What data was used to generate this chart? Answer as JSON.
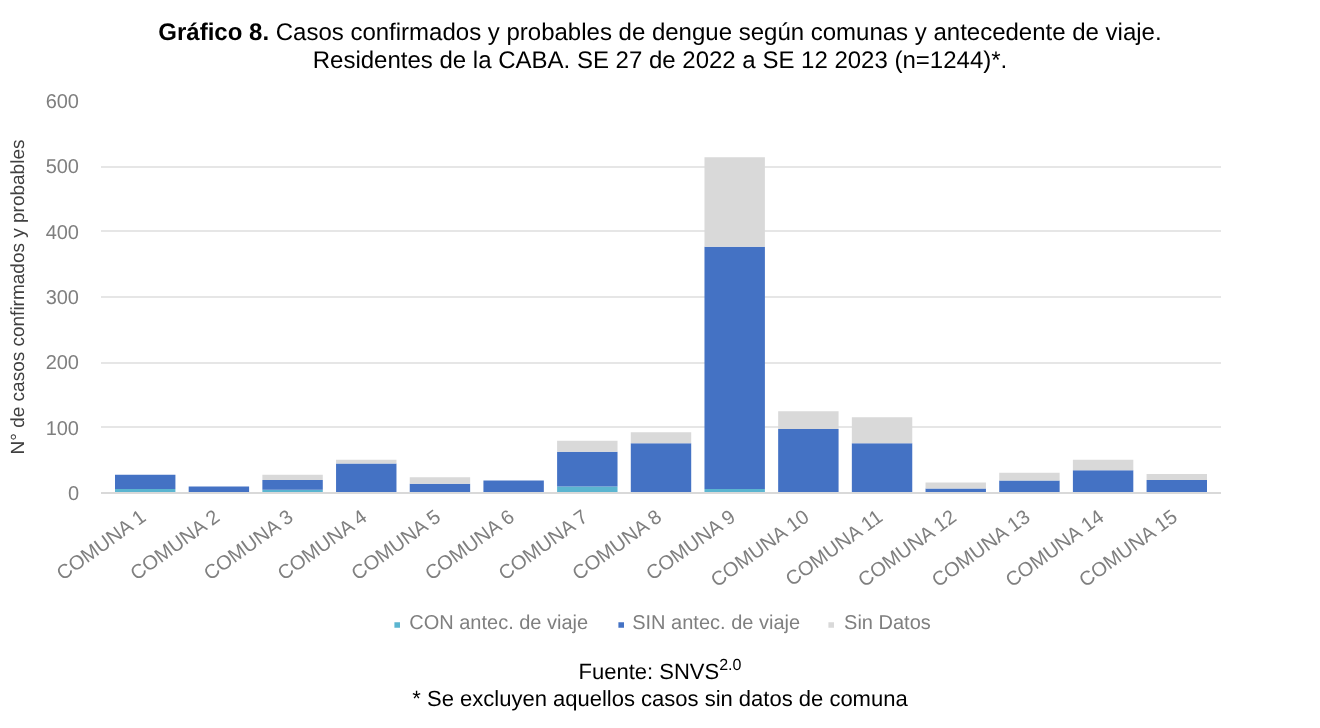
{
  "chart_data": {
    "type": "bar",
    "stacked": true,
    "title": "Gráfico 8. Casos confirmados y probables de dengue según comunas y antecedente de viaje. Residentes de la CABA. SE 27 de 2022 a SE 12 2023 (n=1244)*.",
    "ylabel": "N° de casos confirmados y probables",
    "categories": [
      "COMUNA 1",
      "COMUNA 2",
      "COMUNA 3",
      "COMUNA 4",
      "COMUNA 5",
      "COMUNA 6",
      "COMUNA 7",
      "COMUNA 8",
      "COMUNA 9",
      "COMUNA 10",
      "COMUNA 11",
      "COMUNA 12",
      "COMUNA 13",
      "COMUNA 14",
      "COMUNA 15"
    ],
    "series": [
      {
        "name": "CON antec. de viaje",
        "color": "#5bb5d0",
        "values": [
          6,
          1,
          5,
          1,
          null,
          1,
          10,
          null,
          6,
          1,
          1,
          1,
          1,
          1,
          1
        ]
      },
      {
        "name": "SIN antec. de viaje",
        "color": "#4472c4",
        "values": [
          22,
          9,
          15,
          44,
          14,
          18,
          53,
          76,
          371,
          97,
          75,
          6,
          18,
          34,
          19
        ]
      },
      {
        "name": "Sin Datos",
        "color": "#d9d9d9",
        "values": [
          0,
          0,
          8,
          6,
          10,
          0,
          17,
          17,
          137,
          27,
          40,
          9,
          12,
          16,
          9
        ]
      }
    ],
    "ylim": [
      0,
      600
    ],
    "yticks": [
      0,
      100,
      200,
      300,
      400,
      500,
      600
    ],
    "grid": "y",
    "legend": "bottom",
    "annotations": [
      "Fuente: SNVS$^{2.0}$",
      "* Se excluyen aquellos casos sin datos de comuna"
    ]
  }
}
